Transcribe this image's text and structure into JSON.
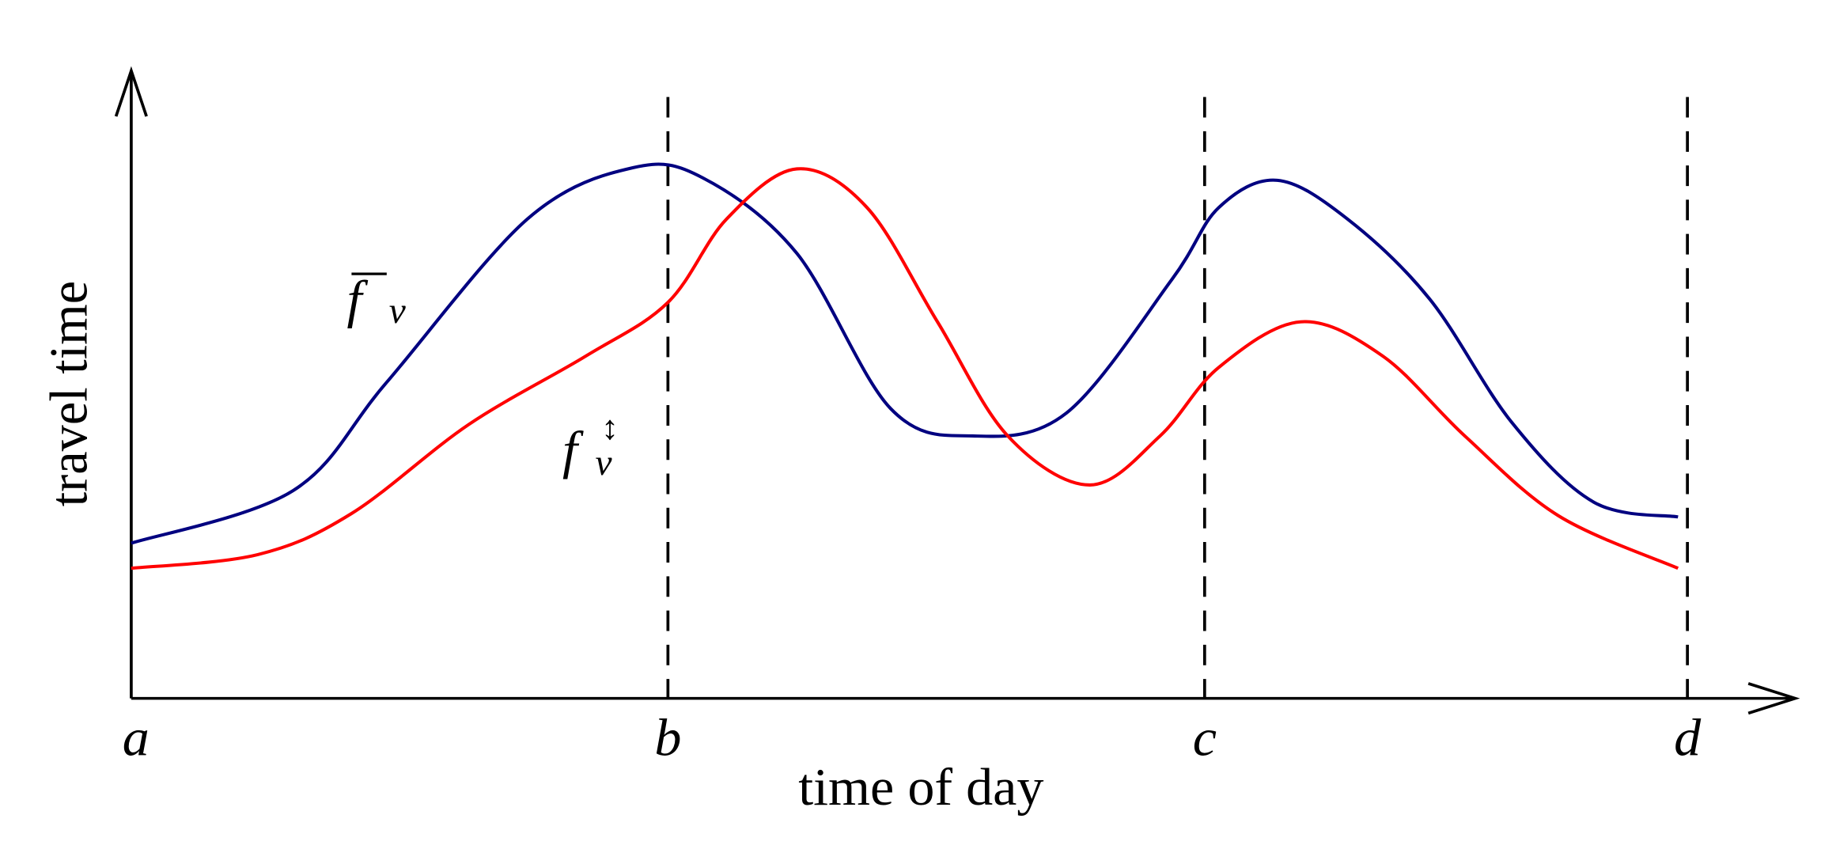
{
  "axes": {
    "y_label": "travel time",
    "x_label": "time of day",
    "x_ticks": [
      "a",
      "b",
      "c",
      "d"
    ]
  },
  "curves": [
    {
      "symbol": "f",
      "subscript": "v"
    },
    {
      "symbol": "f",
      "subscript": "v",
      "superscript": "↕"
    }
  ]
}
